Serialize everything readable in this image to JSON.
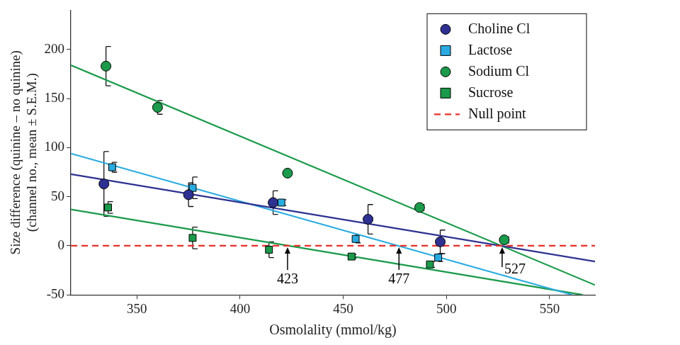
{
  "chart_data": {
    "type": "scatter",
    "x_label": "Osmolality (mmol/kg)",
    "y_label": [
      "Size difference (quinine – no quinine)",
      "(channel no., mean ± S.E.M.)"
    ],
    "xlim": [
      318,
      572
    ],
    "ylim": [
      -50,
      240
    ],
    "xticks": [
      350,
      400,
      450,
      500,
      550
    ],
    "yticks": [
      -50,
      0,
      50,
      100,
      150,
      200
    ],
    "grid": false,
    "legend": "upper right",
    "series": [
      {
        "name": "Choline Cl",
        "color": "#2e3192",
        "marker": "circle",
        "x": [
          334,
          375,
          416,
          462,
          497
        ],
        "values": [
          63,
          52,
          44,
          27,
          4
        ],
        "errors": [
          33,
          12,
          12,
          15,
          12
        ],
        "fit": {
          "x": [
            318,
            572
          ],
          "values": [
            73,
            -16
          ]
        }
      },
      {
        "name": "Lactose",
        "color": "#29abe2",
        "marker": "square",
        "x": [
          338,
          377,
          420,
          456,
          496
        ],
        "values": [
          80,
          59,
          44,
          7,
          -12
        ],
        "errors": [
          5,
          11,
          3,
          4,
          4
        ],
        "fit": {
          "x": [
            318,
            561
          ],
          "values": [
            94,
            -50
          ]
        }
      },
      {
        "name": "Sodium Cl",
        "color": "#1a9a4a",
        "marker": "circle",
        "x": [
          335,
          360,
          423,
          487,
          528
        ],
        "values": [
          183,
          141,
          74,
          39,
          6
        ],
        "errors": [
          20,
          7,
          0,
          3,
          3
        ],
        "fit": {
          "x": [
            318,
            572
          ],
          "values": [
            184,
            -40
          ]
        }
      },
      {
        "name": "Sucrose",
        "color": "#1a9a4a",
        "marker": "square",
        "x": [
          336,
          377,
          414,
          454,
          492
        ],
        "values": [
          39,
          8,
          -4,
          -11,
          -19
        ],
        "errors": [
          6,
          11,
          8,
          2,
          3
        ],
        "fit": {
          "x": [
            318,
            566
          ],
          "values": [
            37,
            -50
          ]
        }
      }
    ],
    "null_line": {
      "name": "Null point",
      "y": 0,
      "color": "#e8312a",
      "line_style": "dashed"
    },
    "annotations": [
      {
        "x": 423,
        "label": "423"
      },
      {
        "x": 477,
        "label": "477"
      },
      {
        "x": 527,
        "label": "527"
      }
    ]
  }
}
